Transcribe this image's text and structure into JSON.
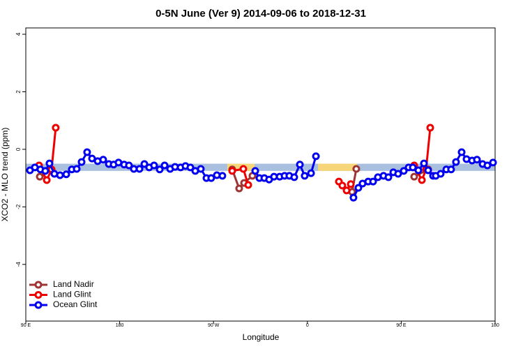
{
  "chart_data": {
    "type": "line",
    "title": "0-5N June (Ver 9)   2014-09-06 to 2018-12-31",
    "xlabel": "Longitude",
    "ylabel": "XCO2 - MLO trend (ppm)",
    "xlim": [
      90,
      540
    ],
    "ylim": [
      -5.97,
      4.22
    ],
    "xticks": [
      {
        "value": 90,
        "label": "90 E"
      },
      180,
      {
        "value": 270,
        "label": "90 W"
      },
      {
        "value": 360,
        "label": "0"
      },
      {
        "value": 450,
        "label": "90 E"
      },
      {
        "value": 540,
        "label": "180"
      }
    ],
    "yticks": [
      -4,
      -2,
      0,
      2,
      4
    ],
    "legend": "bottom-left",
    "bands": [
      {
        "x": [
          90,
          540
        ],
        "y": [
          -0.75,
          -0.5
        ],
        "color": "#a9bfe0"
      },
      {
        "x": [
          283.2,
          309.3
        ],
        "y": [
          -0.75,
          -0.5
        ],
        "color": "#f7d67a"
      },
      {
        "x": [
          370.2,
          407.6
        ],
        "y": [
          -0.75,
          -0.5
        ],
        "color": "#f7d67a"
      }
    ],
    "series": [
      {
        "name": "Land Nadir",
        "color": "#9e3434",
        "x": [
          103.4,
          114.7,
          200,
          287.9,
          294.6,
          299.3,
          307.3,
          355,
          402.9,
          406.9,
          430,
          462.4,
          475.8
        ],
        "values": [
          -0.95,
          -0.7,
          null,
          -0.7,
          -1.36,
          -1.17,
          -0.92,
          null,
          -1.48,
          -0.68,
          null,
          -0.95,
          -0.7
        ]
      },
      {
        "name": "Land Glint",
        "color": "#ee0000",
        "x": [
          102.7,
          110.1,
          114.7,
          118.7,
          200,
          287.9,
          298.6,
          303.3,
          350,
          390.2,
          393.5,
          397.6,
          401.6,
          430,
          462.4,
          469.8,
          473.8,
          477.8
        ],
        "values": [
          -0.56,
          -1.07,
          -0.7,
          0.75,
          null,
          -0.75,
          -0.68,
          -1.24,
          null,
          -1.12,
          -1.26,
          -1.43,
          -1.21,
          null,
          -0.56,
          -1.07,
          -0.7,
          0.75
        ]
      },
      {
        "name": "Ocean Glint",
        "color": "#0000ee",
        "x": [
          94.0,
          98.7,
          104.0,
          108.7,
          112.7,
          117.4,
          122.8,
          128.8,
          134.1,
          138.8,
          143.5,
          148.8,
          153.5,
          158.9,
          164.2,
          169.6,
          174.2,
          178.9,
          184.3,
          188.9,
          193.6,
          199.0,
          203.7,
          208.3,
          213.0,
          218.4,
          223.1,
          228.4,
          233.1,
          238.4,
          243.1,
          247.8,
          252.5,
          257.8,
          263.2,
          267.8,
          273.2,
          278.5,
          294,
          310.0,
          314.0,
          318.7,
          323.3,
          328.0,
          333.4,
          338.1,
          342.7,
          347.4,
          352.8,
          357.4,
          363.5,
          368.2,
          386,
          404.2,
          408.9,
          412.9,
          418.3,
          423.0,
          427.6,
          433.0,
          437.7,
          442.4,
          447.0,
          452.4,
          457.1,
          461.1,
          466.4,
          471.8,
          475.8,
          480.5,
          483.1,
          487.8,
          493.2,
          497.8,
          502.5,
          507.9,
          512.6,
          517.9,
          522.6,
          528.0,
          532.6,
          538.0
        ],
        "values": [
          -0.73,
          -0.63,
          -0.7,
          -0.75,
          -0.49,
          -0.85,
          -0.9,
          -0.87,
          -0.7,
          -0.68,
          -0.44,
          -0.1,
          -0.32,
          -0.41,
          -0.36,
          -0.51,
          -0.53,
          -0.46,
          -0.53,
          -0.56,
          -0.68,
          -0.68,
          -0.51,
          -0.63,
          -0.56,
          -0.7,
          -0.56,
          -0.68,
          -0.61,
          -0.63,
          -0.58,
          -0.63,
          -0.75,
          -0.68,
          -1.0,
          -1.0,
          -0.9,
          -0.92,
          null,
          -0.75,
          -1.0,
          -1.0,
          -1.05,
          -0.95,
          -0.95,
          -0.92,
          -0.92,
          -0.97,
          -0.53,
          -0.92,
          -0.83,
          -0.24,
          null,
          -1.68,
          -1.34,
          -1.19,
          -1.12,
          -1.12,
          -0.97,
          -0.92,
          -0.97,
          -0.8,
          -0.85,
          -0.75,
          -0.63,
          -0.63,
          -0.73,
          -0.49,
          -0.73,
          -0.92,
          -0.92,
          -0.85,
          -0.7,
          -0.7,
          -0.44,
          -0.1,
          -0.34,
          -0.39,
          -0.36,
          -0.51,
          -0.56,
          -0.46
        ]
      }
    ]
  }
}
